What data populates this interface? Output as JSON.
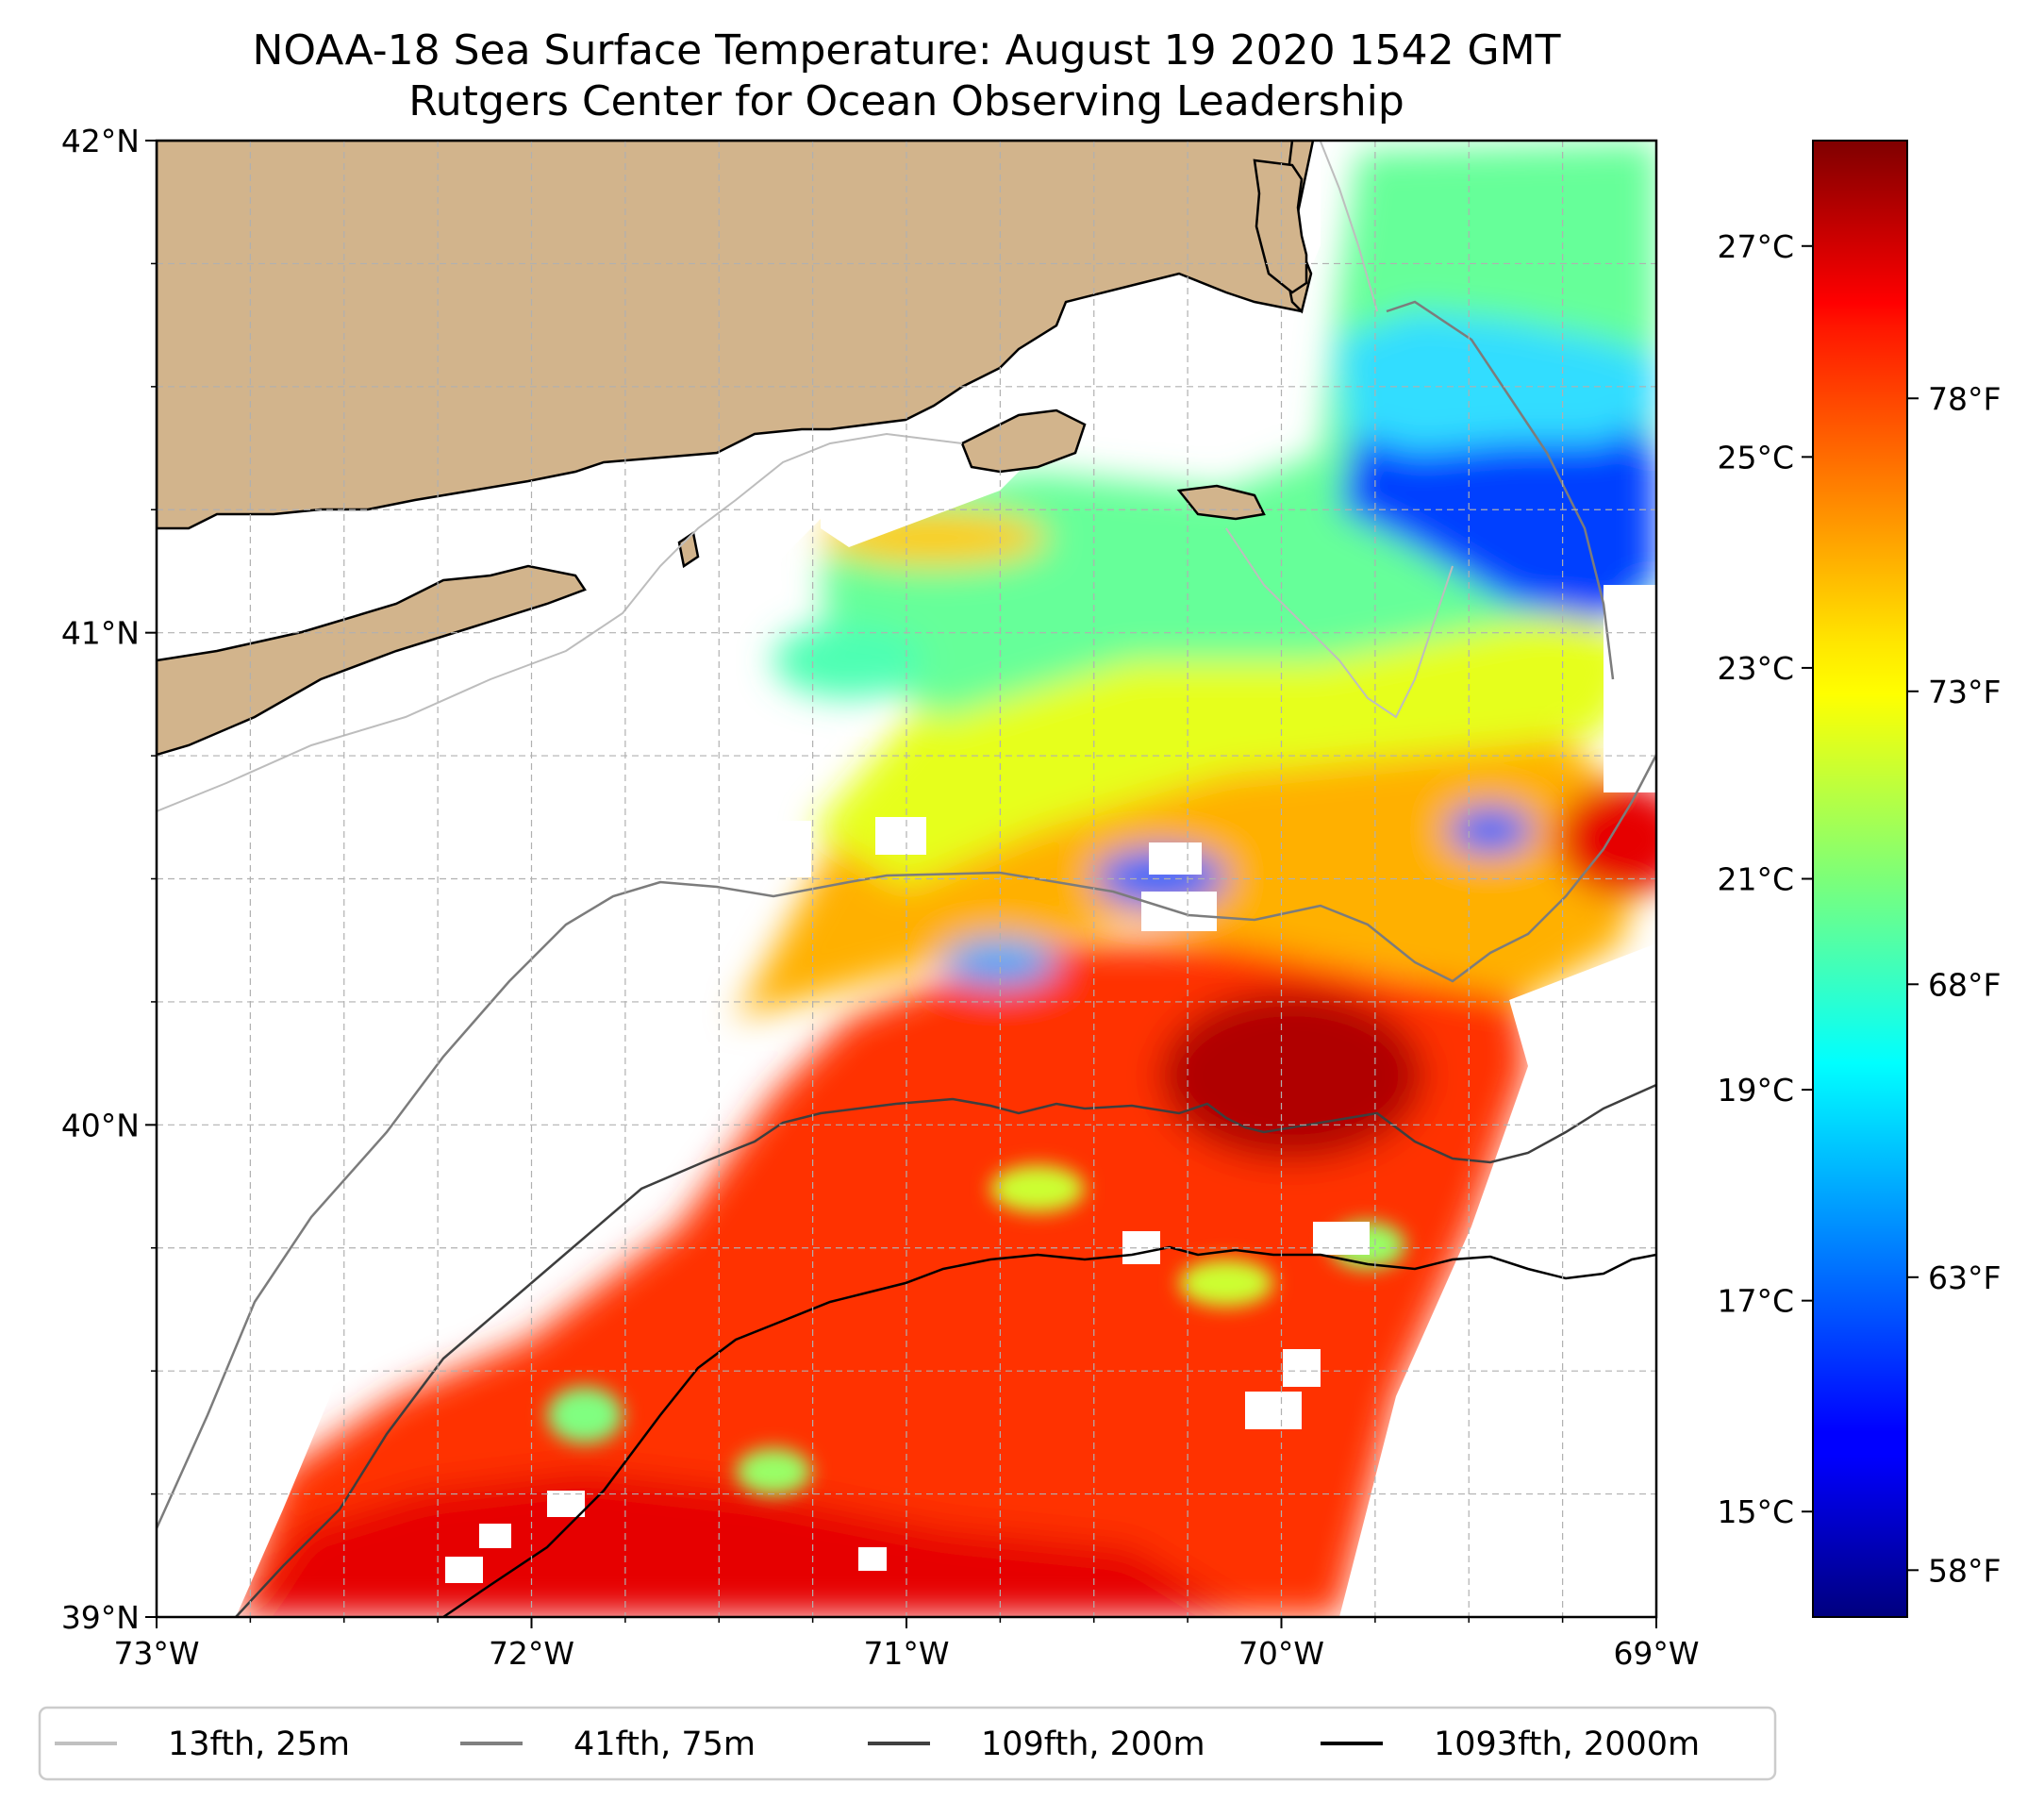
{
  "title_line1": "NOAA-18 Sea Surface Temperature: August 19 2020 1542 GMT",
  "title_line2": "Rutgers Center for Ocean Observing Leadership",
  "map": {
    "lon_range": [
      -73,
      -69
    ],
    "lat_range": [
      39,
      42
    ],
    "x_ticks": [
      {
        "value": -73,
        "label": "73°W"
      },
      {
        "value": -72,
        "label": "72°W"
      },
      {
        "value": -71,
        "label": "71°W"
      },
      {
        "value": -70,
        "label": "70°W"
      },
      {
        "value": -69,
        "label": "69°W"
      }
    ],
    "y_ticks": [
      {
        "value": 42,
        "label": "42°N"
      },
      {
        "value": 41,
        "label": "41°N"
      },
      {
        "value": 40,
        "label": "40°N"
      },
      {
        "value": 39,
        "label": "39°N"
      }
    ],
    "gridlines": "dashed",
    "land_color": "#d2b48c",
    "no_data_color": "#ffffff"
  },
  "colorbar": {
    "colormap": "jet",
    "range_c": [
      14,
      28
    ],
    "celsius_ticks": [
      {
        "value": 15,
        "label": "15°C"
      },
      {
        "value": 17,
        "label": "17°C"
      },
      {
        "value": 19,
        "label": "19°C"
      },
      {
        "value": 21,
        "label": "21°C"
      },
      {
        "value": 23,
        "label": "23°C"
      },
      {
        "value": 25,
        "label": "25°C"
      },
      {
        "value": 27,
        "label": "27°C"
      }
    ],
    "fahrenheit_ticks": [
      {
        "value": 58,
        "label": "58°F"
      },
      {
        "value": 63,
        "label": "63°F"
      },
      {
        "value": 68,
        "label": "68°F"
      },
      {
        "value": 73,
        "label": "73°F"
      },
      {
        "value": 78,
        "label": "78°F"
      }
    ]
  },
  "legend": {
    "placement": "bottom",
    "entries": [
      {
        "label": "13fth, 25m",
        "color": "#c0c0c0"
      },
      {
        "label": "41fth, 75m",
        "color": "#808080"
      },
      {
        "label": "109fth, 200m",
        "color": "#404040"
      },
      {
        "label": "1093fth, 2000m",
        "color": "#000000"
      }
    ]
  }
}
